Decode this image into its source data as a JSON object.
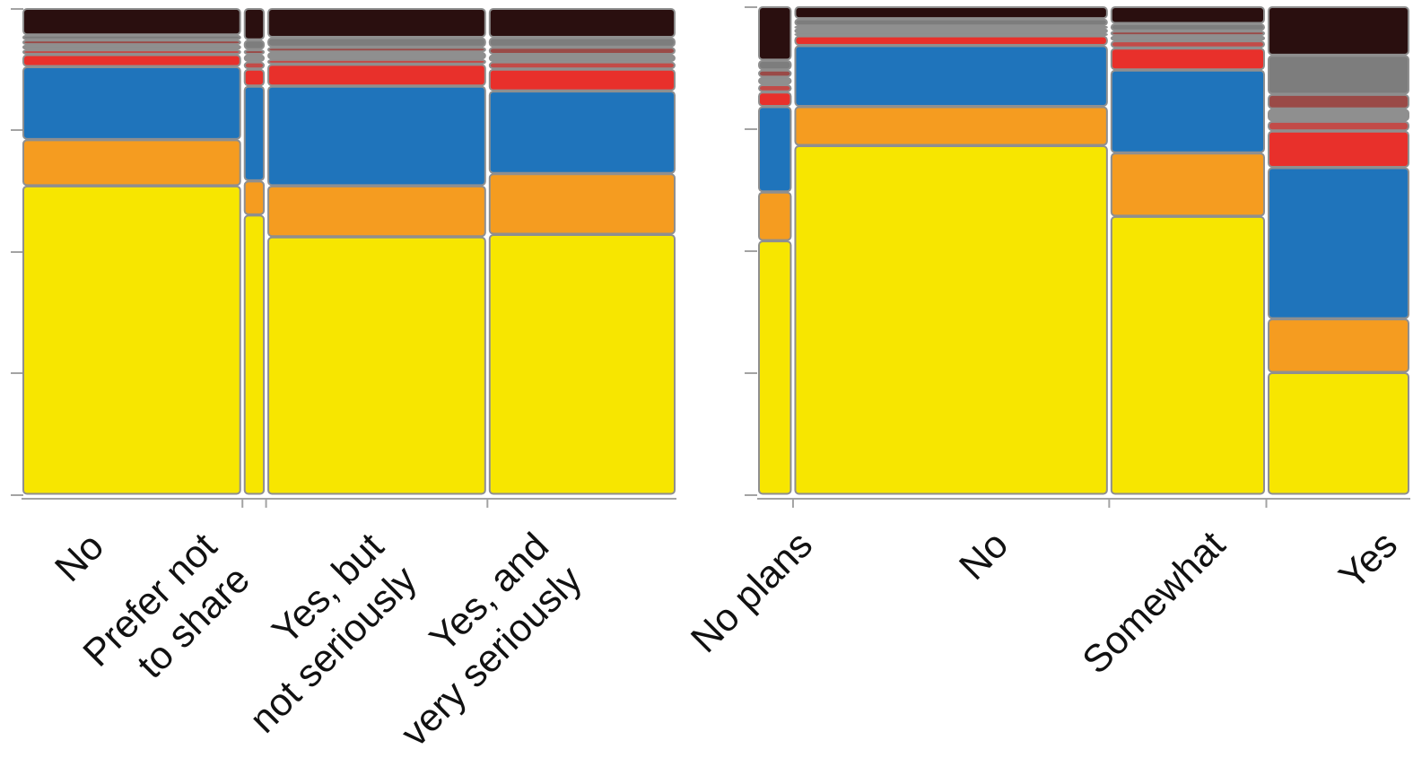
{
  "chart_data": [
    {
      "type": "mosaic",
      "categories": [
        "No",
        "Prefer not to share",
        "Yes, but not seriously",
        "Yes, and very seriously"
      ],
      "tick_labels": [
        [
          "No"
        ],
        [
          "Prefer not",
          "to share"
        ],
        [
          "Yes, but",
          "not seriously"
        ],
        [
          "Yes, and",
          "very seriously"
        ]
      ],
      "column_widths": [
        0.34,
        0.03,
        0.34,
        0.29
      ],
      "segment_colors": [
        "#f7e600",
        "#f59c20",
        "#1f74bb",
        "#e8302b",
        "#c24b48",
        "#8f8f8f",
        "#9a4a47",
        "#7d7d7d",
        "#2a0f0f"
      ],
      "segment_shares": [
        [
          0.635,
          0.095,
          0.15,
          0.025,
          0.01,
          0.01,
          0.01,
          0.01,
          0.055
        ],
        [
          0.575,
          0.07,
          0.195,
          0.035,
          0.015,
          0.015,
          0.01,
          0.02,
          0.065
        ],
        [
          0.53,
          0.105,
          0.205,
          0.045,
          0.01,
          0.015,
          0.01,
          0.02,
          0.06
        ],
        [
          0.535,
          0.125,
          0.17,
          0.045,
          0.015,
          0.015,
          0.015,
          0.02,
          0.06
        ]
      ]
    },
    {
      "type": "mosaic",
      "categories": [
        "No plans",
        "No",
        "Somewhat",
        "Yes"
      ],
      "tick_labels": [
        [
          "No plans"
        ],
        [
          "No"
        ],
        [
          "Somewhat"
        ],
        [
          "Yes"
        ]
      ],
      "column_widths": [
        0.05,
        0.49,
        0.24,
        0.22
      ],
      "segment_colors": [
        "#f7e600",
        "#f59c20",
        "#1f74bb",
        "#e8302b",
        "#c24b48",
        "#8f8f8f",
        "#9a4a47",
        "#7d7d7d",
        "#2a0f0f"
      ],
      "segment_shares": [
        [
          0.52,
          0.1,
          0.175,
          0.03,
          0.015,
          0.015,
          0.015,
          0.02,
          0.11
        ],
        [
          0.715,
          0.08,
          0.125,
          0.02,
          0.005,
          0.01,
          0.005,
          0.015,
          0.025
        ],
        [
          0.57,
          0.13,
          0.17,
          0.045,
          0.015,
          0.01,
          0.01,
          0.015,
          0.035
        ],
        [
          0.25,
          0.11,
          0.31,
          0.075,
          0.02,
          0.025,
          0.03,
          0.08,
          0.1
        ]
      ]
    }
  ]
}
